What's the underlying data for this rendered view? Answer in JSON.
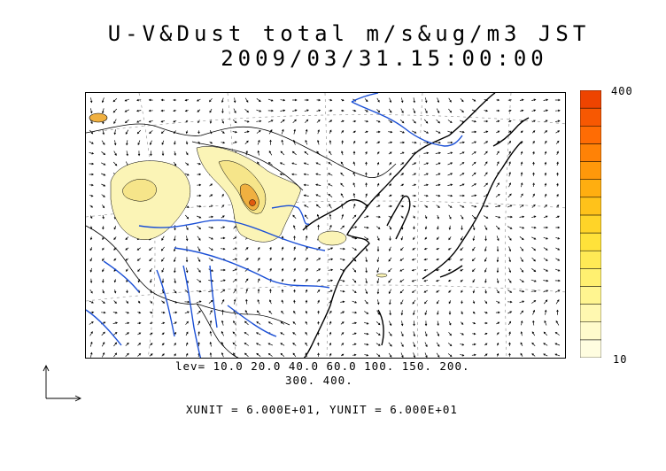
{
  "title": {
    "line1": "U-V&Dust total m/s&ug/m3 JST",
    "line2": "2009/03/31.15:00:00"
  },
  "colorbar": {
    "max_label": "400",
    "min_label": "10",
    "colors": [
      "#fffde0",
      "#fffbcc",
      "#fff8b0",
      "#fff590",
      "#fff070",
      "#ffea55",
      "#ffe23a",
      "#ffd428",
      "#ffc21a",
      "#ffae10",
      "#ff980a",
      "#ff8206",
      "#ff6c04",
      "#f75802",
      "#ee4400"
    ]
  },
  "contour_levels": {
    "line1": "lev= 10.0 20.0 40.0 60.0 100. 150. 200.",
    "line2": "300. 400."
  },
  "units": "XUNIT = 6.000E+01, YUNIT = 6.000E+01",
  "colors": {
    "coastline": "#000000",
    "river": "#1a4fd6",
    "dust_low": "#fbf4b6",
    "dust_mid": "#f6e58a",
    "dust_high": "#f0b040",
    "dust_peak": "#e05a10"
  }
}
